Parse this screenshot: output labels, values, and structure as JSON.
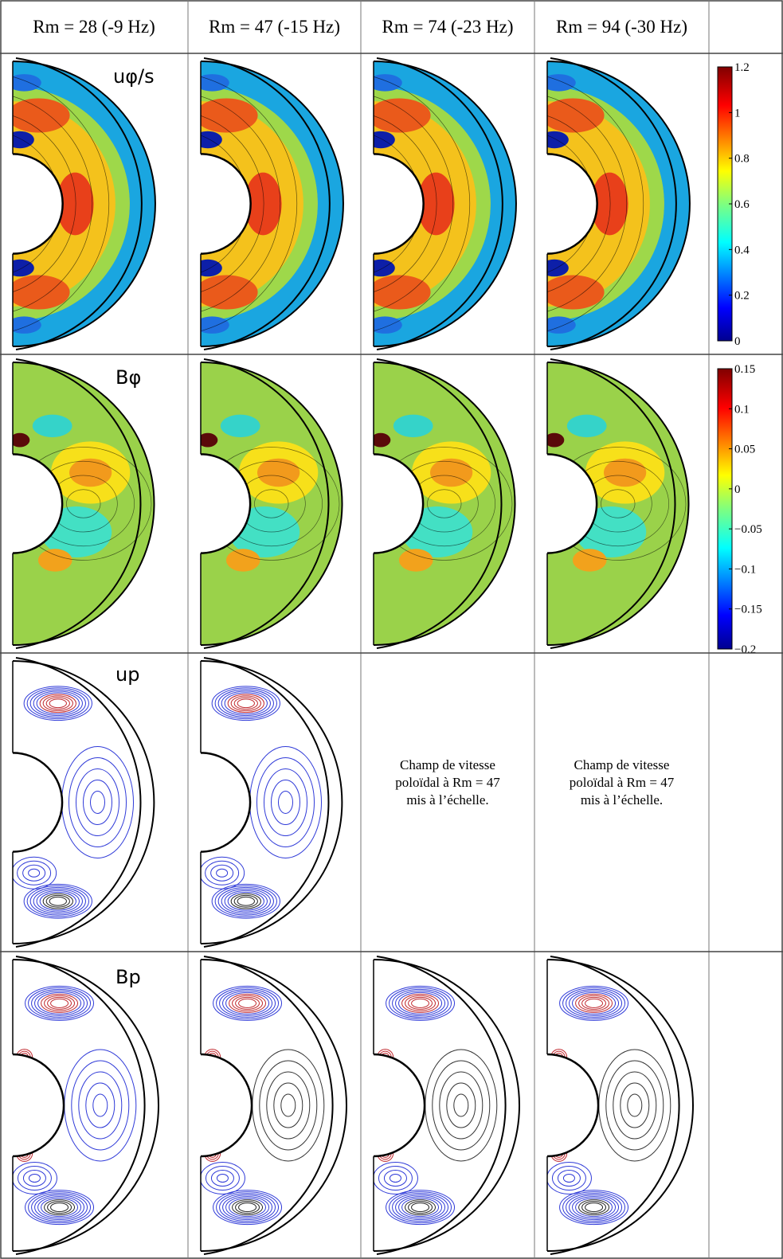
{
  "columns": [
    "Rm = 28 (-9 Hz)",
    "Rm = 47 (-15 Hz)",
    "Rm = 74 (-23 Hz)",
    "Rm = 94 (-30 Hz)"
  ],
  "rows": [
    {
      "label": "uφ/s",
      "kind": "uphi"
    },
    {
      "label": "Bφ",
      "kind": "bphi"
    },
    {
      "label": "up",
      "kind": "up"
    },
    {
      "label": "Bp",
      "kind": "bp"
    }
  ],
  "note_lines": [
    "Champ de vitesse",
    "poloïdal à Rm = 47",
    "mis à l’échelle."
  ],
  "colorbar_uphi": {
    "ticks": [
      "1.2",
      "1",
      "0.8",
      "0.6",
      "0.4",
      "0.2",
      "0"
    ]
  },
  "colorbar_bphi": {
    "ticks": [
      "0.15",
      "0.1",
      "0.05",
      "0",
      "−0.05",
      "−0.1",
      "−0.15",
      "−0.2"
    ]
  },
  "colors": {
    "red": "#c0272d",
    "blue": "#2f3ad8",
    "green_bg": "#9ad24a"
  }
}
